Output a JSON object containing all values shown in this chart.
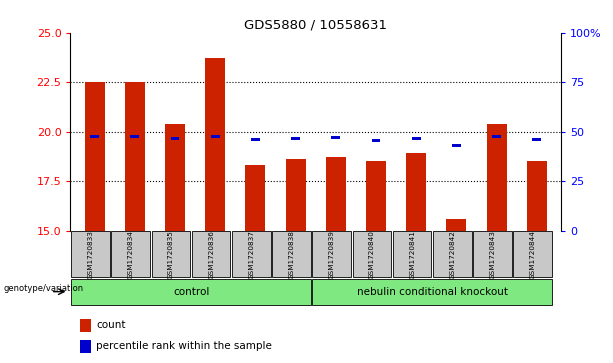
{
  "title": "GDS5880 / 10558631",
  "samples": [
    "GSM1720833",
    "GSM1720834",
    "GSM1720835",
    "GSM1720836",
    "GSM1720837",
    "GSM1720838",
    "GSM1720839",
    "GSM1720840",
    "GSM1720841",
    "GSM1720842",
    "GSM1720843",
    "GSM1720844"
  ],
  "bar_bottoms": [
    15,
    15,
    15,
    15,
    15,
    15,
    15,
    15,
    15,
    15,
    15,
    15
  ],
  "bar_tops": [
    22.5,
    22.5,
    20.4,
    23.7,
    18.3,
    18.6,
    18.7,
    18.5,
    18.9,
    15.6,
    20.4,
    18.5
  ],
  "percentile_values": [
    47.5,
    47.5,
    46.5,
    47.5,
    46.0,
    46.5,
    47.0,
    45.5,
    46.5,
    43.0,
    47.5,
    46.0
  ],
  "ylim_left": [
    15,
    25
  ],
  "ylim_right": [
    0,
    100
  ],
  "yticks_left": [
    15,
    17.5,
    20,
    22.5,
    25
  ],
  "yticks_right": [
    0,
    25,
    50,
    75,
    100
  ],
  "bar_color": "#CC2200",
  "dot_color": "#0000CC",
  "bar_width": 0.5,
  "sample_bg_color": "#C8C8C8",
  "group_color": "#80E880",
  "genotype_label": "genotype/variation",
  "legend_count_label": "count",
  "legend_pct_label": "percentile rank within the sample"
}
